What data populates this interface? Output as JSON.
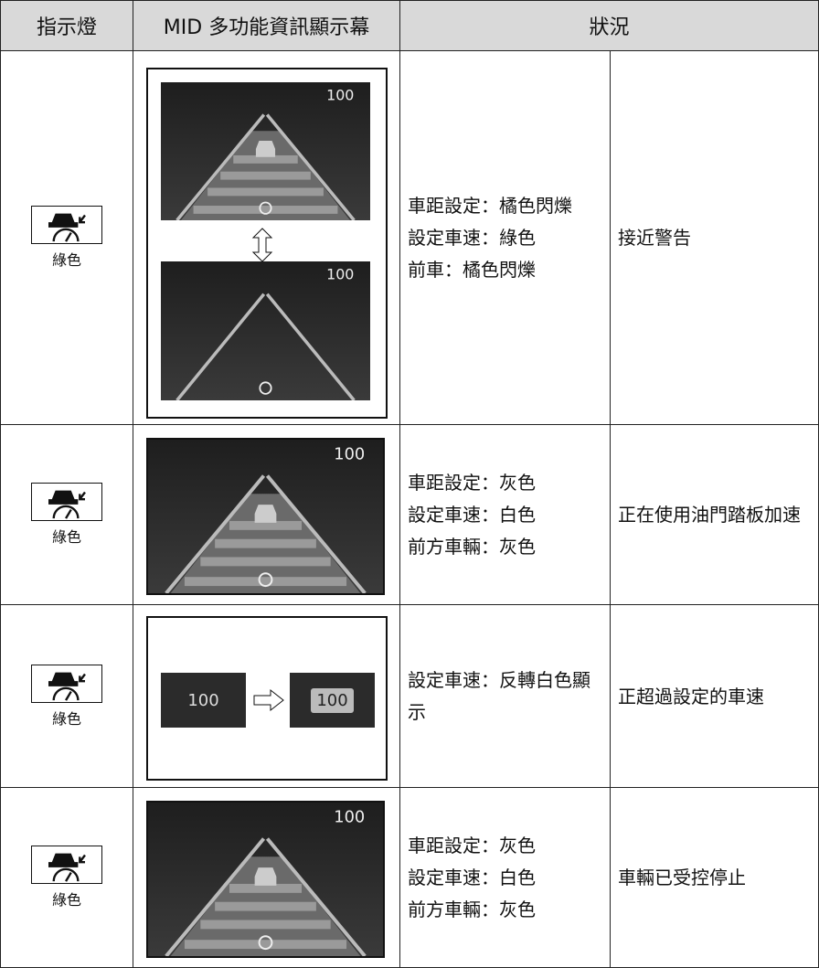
{
  "header": {
    "columns": [
      "指示燈",
      "MID 多功能資訊顯示幕",
      "狀況"
    ]
  },
  "rows": [
    {
      "indicator": "綠色",
      "display": {
        "speeds": [
          "100",
          "100"
        ]
      },
      "description": [
        "車距設定：橘色閃爍",
        "設定車速：綠色",
        "前車：橘色閃爍"
      ],
      "status": "接近警告"
    },
    {
      "indicator": "綠色",
      "display": {
        "speeds": [
          "100"
        ]
      },
      "description": [
        "車距設定：灰色",
        "設定車速：白色",
        "前方車輛：灰色"
      ],
      "status": "正在使用油門踏板加速"
    },
    {
      "indicator": "綠色",
      "display": {
        "speeds": [
          "100",
          "100"
        ]
      },
      "description": [
        "設定車速：反轉白色顯示"
      ],
      "status": "正超過設定的車速"
    },
    {
      "indicator": "綠色",
      "display": {
        "speeds": [
          "100"
        ]
      },
      "description": [
        "車距設定：灰色",
        "設定車速：白色",
        "前方車輛：灰色"
      ],
      "status": "車輛已受控停止"
    }
  ]
}
